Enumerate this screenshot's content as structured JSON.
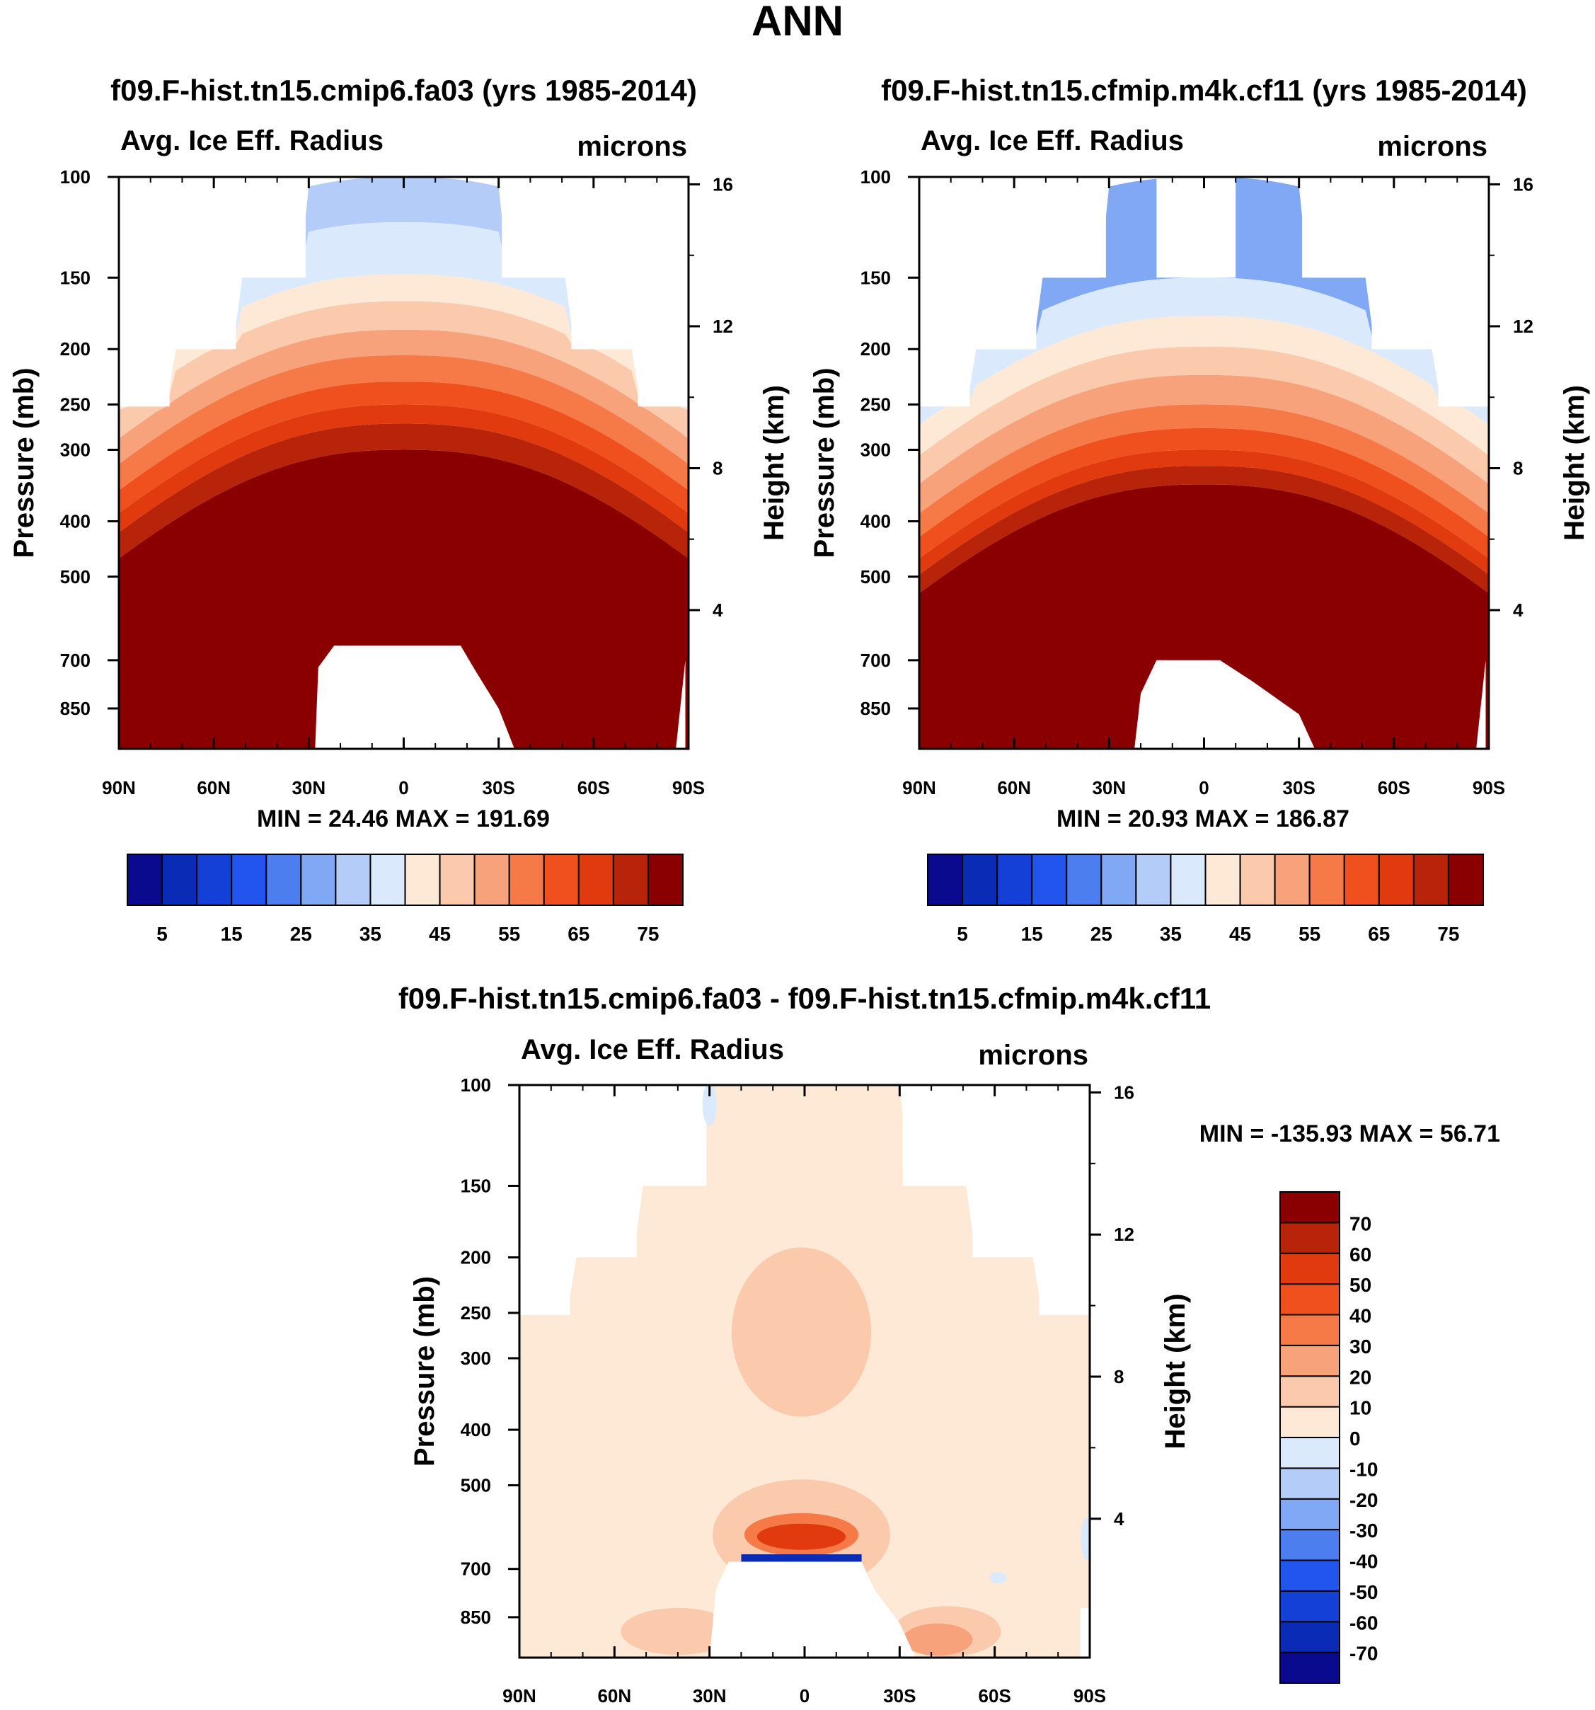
{
  "page_title": "ANN",
  "chart_data": [
    {
      "type": "heatmap",
      "title": "f09.F-hist.tn15.cmip6.fa03 (yrs 1985-2014)",
      "left_label": "Avg. Ice Eff. Radius",
      "right_label": "microns",
      "ylabel": "Pressure (mb)",
      "y2label": "Height (km)",
      "x_ticks": [
        "90N",
        "60N",
        "30N",
        "0",
        "30S",
        "60S",
        "90S"
      ],
      "y_ticks": [
        "100",
        "150",
        "200",
        "250",
        "300",
        "400",
        "500",
        "700",
        "850"
      ],
      "y2_ticks": [
        "16",
        "12",
        "8",
        "4"
      ],
      "ylim": [
        100,
        1000
      ],
      "min_max": "MIN =  24.46   MAX = 191.69",
      "colorbar": {
        "levels": [
          5,
          10,
          15,
          20,
          25,
          30,
          35,
          40,
          45,
          50,
          55,
          60,
          65,
          70,
          75
        ],
        "labels": [
          "5",
          "15",
          "25",
          "35",
          "45",
          "55",
          "65",
          "75"
        ],
        "colors": [
          "#0a0a8f",
          "#0a2bb5",
          "#1440d8",
          "#2255ee",
          "#4d7ef0",
          "#80a8f5",
          "#b3ccf8",
          "#dae9fb",
          "#fde9d6",
          "#fbc9ab",
          "#f7a27a",
          "#f57a48",
          "#f0501e",
          "#e03a0e",
          "#b8240a",
          "#8a0000"
        ]
      }
    },
    {
      "type": "heatmap",
      "title": "f09.F-hist.tn15.cfmip.m4k.cf11 (yrs 1985-2014)",
      "left_label": "Avg. Ice Eff. Radius",
      "right_label": "microns",
      "ylabel": "Pressure (mb)",
      "y2label": "Height (km)",
      "x_ticks": [
        "90N",
        "60N",
        "30N",
        "0",
        "30S",
        "60S",
        "90S"
      ],
      "y_ticks": [
        "100",
        "150",
        "200",
        "250",
        "300",
        "400",
        "500",
        "700",
        "850"
      ],
      "y2_ticks": [
        "16",
        "12",
        "8",
        "4"
      ],
      "ylim": [
        100,
        1000
      ],
      "min_max": "MIN =  20.93   MAX = 186.87",
      "colorbar": {
        "levels": [
          5,
          10,
          15,
          20,
          25,
          30,
          35,
          40,
          45,
          50,
          55,
          60,
          65,
          70,
          75
        ],
        "labels": [
          "5",
          "15",
          "25",
          "35",
          "45",
          "55",
          "65",
          "75"
        ],
        "colors": [
          "#0a0a8f",
          "#0a2bb5",
          "#1440d8",
          "#2255ee",
          "#4d7ef0",
          "#80a8f5",
          "#b3ccf8",
          "#dae9fb",
          "#fde9d6",
          "#fbc9ab",
          "#f7a27a",
          "#f57a48",
          "#f0501e",
          "#e03a0e",
          "#b8240a",
          "#8a0000"
        ]
      }
    },
    {
      "type": "heatmap",
      "title": "f09.F-hist.tn15.cmip6.fa03 - f09.F-hist.tn15.cfmip.m4k.cf11",
      "left_label": "Avg. Ice Eff. Radius",
      "right_label": "microns",
      "ylabel": "Pressure (mb)",
      "y2label": "Height (km)",
      "x_ticks": [
        "90N",
        "60N",
        "30N",
        "0",
        "30S",
        "60S",
        "90S"
      ],
      "y_ticks": [
        "100",
        "150",
        "200",
        "250",
        "300",
        "400",
        "500",
        "700",
        "850"
      ],
      "y2_ticks": [
        "16",
        "12",
        "8",
        "4"
      ],
      "ylim": [
        100,
        1000
      ],
      "min_max": "MIN = -135.93   MAX =  56.71",
      "colorbar": {
        "levels": [
          -70,
          -60,
          -50,
          -40,
          -30,
          -20,
          -10,
          0,
          10,
          20,
          30,
          40,
          50,
          60,
          70
        ],
        "labels": [
          "-70",
          "-60",
          "-50",
          "-40",
          "-30",
          "-20",
          "-10",
          "0",
          "10",
          "20",
          "30",
          "40",
          "50",
          "60",
          "70"
        ],
        "colors": [
          "#0a0a8f",
          "#0a2bb5",
          "#1440d8",
          "#2255ee",
          "#4d7ef0",
          "#80a8f5",
          "#b3ccf8",
          "#dae9fb",
          "#fde9d6",
          "#fbc9ab",
          "#f7a27a",
          "#f57a48",
          "#f0501e",
          "#e03a0e",
          "#b8240a",
          "#8a0000"
        ]
      }
    }
  ]
}
